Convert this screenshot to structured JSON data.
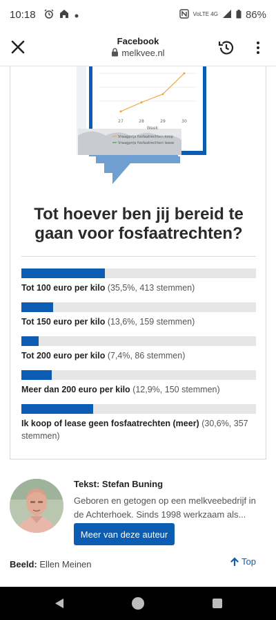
{
  "status_bar": {
    "time": "10:18",
    "left_icons": [
      "alarm-icon",
      "home-icon",
      "dot-icon"
    ],
    "right_icons": [
      "nfc-icon",
      "signal-icon"
    ],
    "network_top": "VoLTE 4G",
    "battery": "86%"
  },
  "app_bar": {
    "title": "Facebook",
    "url": "melkvee.nl"
  },
  "poll": {
    "question": "Tot hoever ben jij bereid te gaan voor fosfaatrechten?",
    "accent_color": "#0a5db3",
    "options": [
      {
        "label": "Tot 100 euro per kilo",
        "detail": "(35,5%, 413 stemmen)",
        "percent": 35.5
      },
      {
        "label": "Tot 150 euro per kilo",
        "detail": "(13,6%, 159 stemmen)",
        "percent": 13.6
      },
      {
        "label": "Tot 200 euro per kilo",
        "detail": "(7,4%, 86 stemmen)",
        "percent": 7.4
      },
      {
        "label": "Meer dan 200 euro per kilo",
        "detail": "(12,9%, 150 stemmen)",
        "percent": 12.9
      },
      {
        "label": "Ik koop of lease geen fosfaatrechten (meer)",
        "detail": "(30,6%, 357 stemmen)",
        "percent": 30.6
      }
    ]
  },
  "illustration": {
    "x_ticks": [
      "27",
      "28",
      "29",
      "30"
    ],
    "x_label": "Week",
    "legend": [
      "Vraagprijs fosfaatrechten koop",
      "Vraagprijs fosfaatrechten lease"
    ],
    "legend_colors": [
      "#f0a33a",
      "#3aa14a"
    ]
  },
  "author": {
    "name": "Tekst: Stefan Buning",
    "bio": "Geboren en getogen op een melkveebedrijf in de Achterhoek. Sinds 1998 werkzaam als...",
    "button_label": "Meer van deze auteur"
  },
  "credit": {
    "label": "Beeld:",
    "value": "Ellen Meinen"
  },
  "top_link": "Top"
}
